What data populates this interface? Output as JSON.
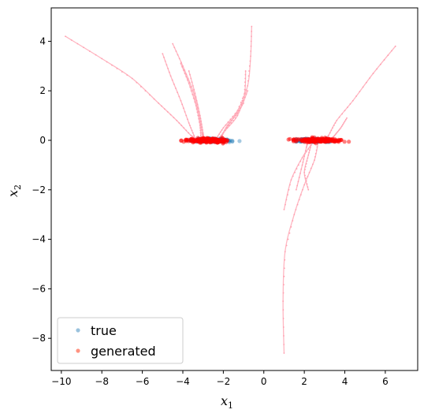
{
  "chart_data": {
    "type": "scatter",
    "title": "",
    "xlabel": "x",
    "xlabel_sub": "1",
    "ylabel": "x",
    "ylabel_sub": "2",
    "xlim": [
      -10.5,
      7.6
    ],
    "ylim": [
      -9.3,
      5.35
    ],
    "xticks": [
      -10,
      -8,
      -6,
      -4,
      -2,
      0,
      2,
      4,
      6
    ],
    "yticks": [
      -8,
      -6,
      -4,
      -2,
      0,
      2,
      4
    ],
    "grid": false,
    "legend_position": "lower-left",
    "legend": [
      {
        "label": "true",
        "color": "#1f77b4"
      },
      {
        "label": "generated",
        "color": "#ff0000"
      }
    ],
    "clusters": {
      "true": [
        {
          "x_range": [
            -4.0,
            -1.2
          ],
          "y": 0.0,
          "spread": 0.06
        },
        {
          "x_range": [
            1.2,
            3.6
          ],
          "y": 0.0,
          "spread": 0.06
        }
      ],
      "generated": [
        {
          "x_range": [
            -4.1,
            -1.4
          ],
          "y": 0.0,
          "spread": 0.08
        },
        {
          "x_range": [
            1.2,
            4.2
          ],
          "y": 0.0,
          "spread": 0.08
        }
      ]
    },
    "trajectories": [
      {
        "points": [
          [
            -9.8,
            4.2
          ],
          [
            -8.0,
            3.3
          ],
          [
            -6.5,
            2.5
          ],
          [
            -5.2,
            1.5
          ],
          [
            -4.3,
            0.8
          ],
          [
            -3.6,
            0.2
          ],
          [
            -3.2,
            0.0
          ]
        ]
      },
      {
        "points": [
          [
            -5.0,
            3.5
          ],
          [
            -4.6,
            2.6
          ],
          [
            -4.1,
            1.6
          ],
          [
            -3.7,
            0.7
          ],
          [
            -3.4,
            0.1
          ],
          [
            -3.3,
            0.0
          ]
        ]
      },
      {
        "points": [
          [
            -4.5,
            3.9
          ],
          [
            -4.0,
            3.0
          ],
          [
            -3.5,
            2.0
          ],
          [
            -3.2,
            1.0
          ],
          [
            -3.05,
            0.3
          ],
          [
            -3.0,
            0.0
          ]
        ]
      },
      {
        "points": [
          [
            -4.1,
            3.1
          ],
          [
            -3.7,
            2.3
          ],
          [
            -3.35,
            1.4
          ],
          [
            -3.15,
            0.6
          ],
          [
            -3.1,
            0.0
          ]
        ]
      },
      {
        "points": [
          [
            -3.7,
            2.8
          ],
          [
            -3.4,
            1.9
          ],
          [
            -3.15,
            1.0
          ],
          [
            -3.0,
            0.3
          ],
          [
            -2.95,
            0.0
          ]
        ]
      },
      {
        "points": [
          [
            -0.6,
            4.6
          ],
          [
            -0.65,
            3.4
          ],
          [
            -0.8,
            2.2
          ],
          [
            -1.3,
            1.2
          ],
          [
            -2.0,
            0.5
          ],
          [
            -2.4,
            0.0
          ]
        ]
      },
      {
        "points": [
          [
            -0.9,
            2.8
          ],
          [
            -0.95,
            1.9
          ],
          [
            -1.3,
            1.0
          ],
          [
            -1.9,
            0.4
          ],
          [
            -2.3,
            0.0
          ]
        ]
      },
      {
        "points": [
          [
            -0.8,
            2.0
          ],
          [
            -1.2,
            1.2
          ],
          [
            -1.8,
            0.6
          ],
          [
            -2.2,
            0.0
          ]
        ]
      },
      {
        "points": [
          [
            -1.0,
            1.5
          ],
          [
            -1.5,
            0.9
          ],
          [
            -2.0,
            0.3
          ],
          [
            -2.15,
            0.0
          ]
        ]
      },
      {
        "points": [
          [
            6.5,
            3.8
          ],
          [
            5.4,
            2.7
          ],
          [
            4.4,
            1.6
          ],
          [
            3.6,
            0.8
          ],
          [
            3.2,
            0.2
          ],
          [
            3.0,
            0.0
          ]
        ]
      },
      {
        "points": [
          [
            4.1,
            0.9
          ],
          [
            3.8,
            0.5
          ],
          [
            3.5,
            0.2
          ],
          [
            3.3,
            0.0
          ]
        ]
      },
      {
        "points": [
          [
            1.0,
            -8.6
          ],
          [
            0.95,
            -6.5
          ],
          [
            1.05,
            -4.5
          ],
          [
            1.5,
            -3.0
          ],
          [
            2.0,
            -1.8
          ],
          [
            2.5,
            -0.8
          ],
          [
            2.7,
            0.0
          ]
        ]
      },
      {
        "points": [
          [
            1.0,
            -2.8
          ],
          [
            1.35,
            -1.6
          ],
          [
            1.9,
            -0.7
          ],
          [
            2.5,
            0.0
          ]
        ]
      },
      {
        "points": [
          [
            2.2,
            -2.0
          ],
          [
            2.0,
            -1.3
          ],
          [
            2.2,
            -0.6
          ],
          [
            2.4,
            0.0
          ]
        ]
      },
      {
        "points": [
          [
            1.6,
            -2.0
          ],
          [
            1.9,
            -1.0
          ],
          [
            2.1,
            -0.3
          ],
          [
            2.2,
            0.0
          ]
        ]
      }
    ]
  }
}
